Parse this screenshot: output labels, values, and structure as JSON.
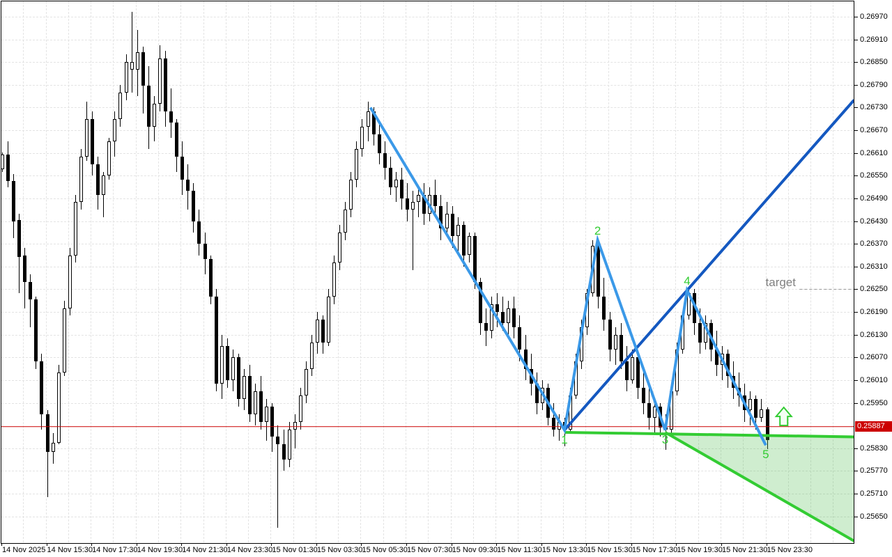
{
  "chart_data": {
    "type": "candlestick",
    "candles_format": "[open, high, low, close]",
    "x_axis": {
      "labels": [
        "14 Nov 2025",
        "14 Nov 15:30",
        "14 Nov 17:30",
        "14 Nov 19:30",
        "14 Nov 21:30",
        "14 Nov 23:30",
        "15 Nov 01:30",
        "15 Nov 03:30",
        "15 Nov 05:30",
        "15 Nov 07:30",
        "15 Nov 09:30",
        "15 Nov 11:30",
        "15 Nov 13:30",
        "15 Nov 15:30",
        "15 Nov 17:30",
        "15 Nov 19:30",
        "15 Nov 21:30",
        "15 Nov 23:30"
      ],
      "candles_per_label": 8
    },
    "y_axis": {
      "labels": [
        "0.26970",
        "0.26910",
        "0.26850",
        "0.26790",
        "0.26730",
        "0.26670",
        "0.26610",
        "0.26550",
        "0.26490",
        "0.26430",
        "0.26370",
        "0.26310",
        "0.26250",
        "0.26190",
        "0.26130",
        "0.26070",
        "0.26010",
        "0.25950",
        "0.25830",
        "0.25770",
        "0.25710",
        "0.25650"
      ],
      "visible_max": 0.2697,
      "visible_min": 0.2565,
      "label_step": 0.0006
    },
    "candles": [
      [
        0.26568,
        0.26612,
        0.2656,
        0.26605
      ],
      [
        0.26605,
        0.2664,
        0.2652,
        0.26535
      ],
      [
        0.26536,
        0.26555,
        0.26385,
        0.2643
      ],
      [
        0.26432,
        0.2645,
        0.2624,
        0.26335
      ],
      [
        0.2634,
        0.2636,
        0.262,
        0.2627
      ],
      [
        0.2627,
        0.2629,
        0.2615,
        0.26224
      ],
      [
        0.26224,
        0.2623,
        0.2604,
        0.2606
      ],
      [
        0.2606,
        0.2608,
        0.2588,
        0.2592
      ],
      [
        0.2592,
        0.2593,
        0.257,
        0.2582
      ],
      [
        0.2582,
        0.2587,
        0.2579,
        0.25845
      ],
      [
        0.25845,
        0.2605,
        0.2584,
        0.2603
      ],
      [
        0.2603,
        0.2622,
        0.2602,
        0.262
      ],
      [
        0.262,
        0.2636,
        0.2618,
        0.2634
      ],
      [
        0.2634,
        0.265,
        0.2632,
        0.2648
      ],
      [
        0.2648,
        0.2662,
        0.2646,
        0.266
      ],
      [
        0.266,
        0.26745,
        0.2659,
        0.267
      ],
      [
        0.267,
        0.2672,
        0.2655,
        0.2658
      ],
      [
        0.2658,
        0.266,
        0.2646,
        0.265
      ],
      [
        0.265,
        0.2656,
        0.2644,
        0.2655
      ],
      [
        0.2655,
        0.2665,
        0.2654,
        0.2664
      ],
      [
        0.2664,
        0.2672,
        0.266,
        0.267
      ],
      [
        0.267,
        0.2679,
        0.2668,
        0.2677
      ],
      [
        0.2677,
        0.2687,
        0.2675,
        0.2685
      ],
      [
        0.2683,
        0.26983,
        0.2677,
        0.2685
      ],
      [
        0.2683,
        0.26935,
        0.2676,
        0.26876
      ],
      [
        0.26876,
        0.2689,
        0.26714,
        0.26788
      ],
      [
        0.26788,
        0.2684,
        0.2662,
        0.2668
      ],
      [
        0.2668,
        0.2676,
        0.2664,
        0.2674
      ],
      [
        0.2674,
        0.26895,
        0.2672,
        0.2686
      ],
      [
        0.2686,
        0.2688,
        0.2668,
        0.2672
      ],
      [
        0.2672,
        0.2678,
        0.2665,
        0.2669
      ],
      [
        0.2669,
        0.267,
        0.2656,
        0.266
      ],
      [
        0.266,
        0.2664,
        0.265,
        0.2654
      ],
      [
        0.2654,
        0.2658,
        0.2646,
        0.2651
      ],
      [
        0.2651,
        0.2653,
        0.264,
        0.2643
      ],
      [
        0.2643,
        0.2646,
        0.2634,
        0.2637
      ],
      [
        0.2637,
        0.264,
        0.2629,
        0.2633
      ],
      [
        0.2633,
        0.2634,
        0.2621,
        0.2623
      ],
      [
        0.2623,
        0.2625,
        0.2598,
        0.26
      ],
      [
        0.26,
        0.2613,
        0.2596,
        0.261
      ],
      [
        0.261,
        0.2612,
        0.2599,
        0.2601
      ],
      [
        0.2601,
        0.2609,
        0.2598,
        0.2607
      ],
      [
        0.2607,
        0.2608,
        0.2594,
        0.2596
      ],
      [
        0.2596,
        0.2604,
        0.2593,
        0.2602
      ],
      [
        0.2602,
        0.2605,
        0.259,
        0.2592
      ],
      [
        0.2592,
        0.26,
        0.2589,
        0.2598
      ],
      [
        0.2598,
        0.2602,
        0.2588,
        0.259
      ],
      [
        0.259,
        0.2596,
        0.2585,
        0.2594
      ],
      [
        0.2594,
        0.2595,
        0.2582,
        0.2586
      ],
      [
        0.2586,
        0.2589,
        0.2562,
        0.2584
      ],
      [
        0.2584,
        0.2588,
        0.2577,
        0.258
      ],
      [
        0.258,
        0.259,
        0.2578,
        0.2588
      ],
      [
        0.2588,
        0.2592,
        0.2583,
        0.259
      ],
      [
        0.259,
        0.2599,
        0.2588,
        0.2597
      ],
      [
        0.2597,
        0.2606,
        0.2595,
        0.2604
      ],
      [
        0.2604,
        0.2613,
        0.2602,
        0.2611
      ],
      [
        0.2611,
        0.2619,
        0.2608,
        0.2617
      ],
      [
        0.2617,
        0.2618,
        0.2608,
        0.2611
      ],
      [
        0.2611,
        0.2625,
        0.261,
        0.2623
      ],
      [
        0.2623,
        0.2634,
        0.2621,
        0.2632
      ],
      [
        0.2632,
        0.2642,
        0.263,
        0.264
      ],
      [
        0.264,
        0.2648,
        0.2638,
        0.2646
      ],
      [
        0.2646,
        0.2656,
        0.2644,
        0.2654
      ],
      [
        0.2654,
        0.2664,
        0.2652,
        0.2662
      ],
      [
        0.2662,
        0.267,
        0.266,
        0.2668
      ],
      [
        0.2668,
        0.26745,
        0.2664,
        0.2672
      ],
      [
        0.2672,
        0.2673,
        0.2663,
        0.2666
      ],
      [
        0.2666,
        0.2669,
        0.2658,
        0.2661
      ],
      [
        0.2661,
        0.2664,
        0.2654,
        0.2657
      ],
      [
        0.2657,
        0.266,
        0.265,
        0.2652
      ],
      [
        0.2652,
        0.2656,
        0.2648,
        0.2654
      ],
      [
        0.2654,
        0.2657,
        0.2646,
        0.2649
      ],
      [
        0.2649,
        0.2653,
        0.2643,
        0.2646
      ],
      [
        0.2646,
        0.2651,
        0.263,
        0.2648
      ],
      [
        0.2648,
        0.2652,
        0.2644,
        0.265
      ],
      [
        0.265,
        0.2653,
        0.2642,
        0.2645
      ],
      [
        0.2645,
        0.2652,
        0.2643,
        0.265
      ],
      [
        0.265,
        0.2654,
        0.2644,
        0.2647
      ],
      [
        0.2647,
        0.265,
        0.2638,
        0.2641
      ],
      [
        0.2641,
        0.2648,
        0.2639,
        0.2645
      ],
      [
        0.2645,
        0.2647,
        0.2636,
        0.2639
      ],
      [
        0.2639,
        0.2644,
        0.2634,
        0.2642
      ],
      [
        0.2642,
        0.2643,
        0.2631,
        0.2634
      ],
      [
        0.2634,
        0.264,
        0.2632,
        0.2639
      ],
      [
        0.2639,
        0.264,
        0.2625,
        0.2627
      ],
      [
        0.2627,
        0.2628,
        0.2613,
        0.2616
      ],
      [
        0.2616,
        0.262,
        0.261,
        0.2614
      ],
      [
        0.2614,
        0.2623,
        0.2612,
        0.2621
      ],
      [
        0.2621,
        0.2624,
        0.2615,
        0.2619
      ],
      [
        0.2619,
        0.2623,
        0.2614,
        0.2616
      ],
      [
        0.2616,
        0.2622,
        0.2613,
        0.262
      ],
      [
        0.262,
        0.2623,
        0.2612,
        0.2615
      ],
      [
        0.2615,
        0.2618,
        0.2606,
        0.2609
      ],
      [
        0.2609,
        0.2613,
        0.2601,
        0.2604
      ],
      [
        0.2604,
        0.2608,
        0.2597,
        0.26
      ],
      [
        0.26,
        0.2603,
        0.2592,
        0.2595
      ],
      [
        0.2595,
        0.2601,
        0.2593,
        0.2599
      ],
      [
        0.2599,
        0.26,
        0.2589,
        0.2591
      ],
      [
        0.2591,
        0.2595,
        0.2586,
        0.2588
      ],
      [
        0.2588,
        0.2592,
        0.2585,
        0.259
      ],
      [
        0.259,
        0.2591,
        0.25835,
        0.2588
      ],
      [
        0.2588,
        0.2599,
        0.2587,
        0.2597
      ],
      [
        0.2597,
        0.2608,
        0.2596,
        0.2606
      ],
      [
        0.2606,
        0.2617,
        0.2604,
        0.2615
      ],
      [
        0.2615,
        0.2625,
        0.2613,
        0.2624
      ],
      [
        0.2624,
        0.26379,
        0.2623,
        0.26365
      ],
      [
        0.26365,
        0.26375,
        0.262,
        0.2623
      ],
      [
        0.2623,
        0.2628,
        0.2614,
        0.2617
      ],
      [
        0.2617,
        0.2619,
        0.2606,
        0.2609
      ],
      [
        0.2609,
        0.2615,
        0.2605,
        0.2613
      ],
      [
        0.2613,
        0.2616,
        0.2604,
        0.2606
      ],
      [
        0.2606,
        0.261,
        0.2598,
        0.2601
      ],
      [
        0.2601,
        0.2609,
        0.26,
        0.2607
      ],
      [
        0.2607,
        0.2608,
        0.2596,
        0.2599
      ],
      [
        0.2599,
        0.2603,
        0.2592,
        0.2595
      ],
      [
        0.2595,
        0.2599,
        0.2588,
        0.2591
      ],
      [
        0.2591,
        0.2596,
        0.2587,
        0.2594
      ],
      [
        0.2594,
        0.2595,
        0.2586,
        0.25885
      ],
      [
        0.25885,
        0.2592,
        0.25825,
        0.2588
      ],
      [
        0.2588,
        0.26,
        0.2587,
        0.2598
      ],
      [
        0.2598,
        0.2611,
        0.2597,
        0.2609
      ],
      [
        0.2609,
        0.2619,
        0.2608,
        0.2618
      ],
      [
        0.2618,
        0.26247,
        0.2617,
        0.2624
      ],
      [
        0.2624,
        0.2625,
        0.2613,
        0.2616
      ],
      [
        0.2616,
        0.262,
        0.2608,
        0.2611
      ],
      [
        0.2611,
        0.2618,
        0.2609,
        0.2616
      ],
      [
        0.2616,
        0.2617,
        0.2606,
        0.2609
      ],
      [
        0.2609,
        0.2614,
        0.2602,
        0.2605
      ],
      [
        0.2605,
        0.261,
        0.2601,
        0.2608
      ],
      [
        0.2608,
        0.2609,
        0.2599,
        0.2602
      ],
      [
        0.2602,
        0.2606,
        0.2596,
        0.2599
      ],
      [
        0.2599,
        0.2603,
        0.2594,
        0.2597
      ],
      [
        0.2597,
        0.26,
        0.259,
        0.2593
      ],
      [
        0.2593,
        0.2598,
        0.2589,
        0.2596
      ],
      [
        0.2596,
        0.2597,
        0.2588,
        0.2591
      ],
      [
        0.2591,
        0.2596,
        0.259,
        0.25932
      ],
      [
        0.25932,
        0.25938,
        0.25828,
        0.25852
      ]
    ],
    "colors": {
      "bull_body": "#FFFFFF",
      "bear_body": "#000000",
      "outline": "#000000",
      "zigzag_blue": "#3B99E8",
      "trend_blue": "#1458C0",
      "green": "#33CC33",
      "wedge_fill": "rgba(76,187,76,0.27)",
      "red": "#CC0000",
      "grid": "#E3E3E3",
      "target_gray": "#808080"
    },
    "annotations": {
      "zigzag": {
        "points": [
          {
            "t": 65.5,
            "p": 0.2673
          },
          {
            "t": 100.0,
            "p": 0.25878
          },
          {
            "t": 105.9,
            "p": 0.2638
          },
          {
            "t": 117.9,
            "p": 0.25878
          },
          {
            "t": 121.8,
            "p": 0.26247
          },
          {
            "t": 135.8,
            "p": 0.25838
          }
        ],
        "wave_labels": [
          "1",
          "2",
          "3",
          "4",
          "5"
        ]
      },
      "trend_line": {
        "from": {
          "t": 100.0,
          "p": 0.25878
        },
        "to": {
          "t": 151.5,
          "p": 0.2675
        }
      },
      "support_line": {
        "from": {
          "t": 100.0,
          "p": 0.25872
        },
        "to": {
          "t": 151.5,
          "p": 0.2586
        }
      },
      "wedge": {
        "apex": {
          "t": 117.9,
          "p": 0.25872
        },
        "top_end": {
          "t": 151.5,
          "p": 0.2586
        },
        "bottom_end": {
          "t": 151.5,
          "p": 0.25585
        }
      },
      "price_line": {
        "price": 0.25887,
        "label": "0.25887"
      },
      "target": {
        "label": "target",
        "price": 0.2625,
        "line_start_t": 141.8,
        "line_end_t": 151.5
      },
      "arrow_up": {
        "t": 139.0,
        "price": 0.2589
      }
    }
  }
}
